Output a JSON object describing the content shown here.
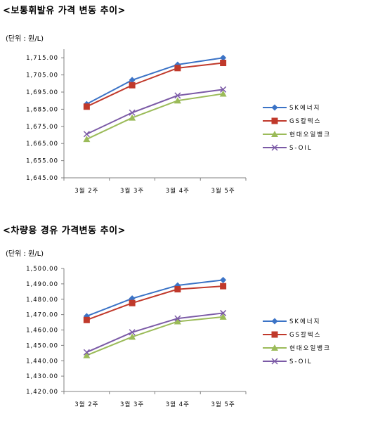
{
  "titles": [
    "<보통휘발유 가격 변동 추이>",
    "<차량용 경유 가격변동 추이>"
  ],
  "chart_data": [
    {
      "type": "line",
      "title": "<보통휘발유 가격 변동 추이>",
      "unit_label": "(단위 : 원/L)",
      "categories": [
        "3월 2주",
        "3월 3주",
        "3월 4주",
        "3월 5주"
      ],
      "ylim": [
        1645,
        1720
      ],
      "y_ticks": [
        "1,715.00",
        "1,705.00",
        "1,695.00",
        "1,685.00",
        "1,675.00",
        "1,665.00",
        "1,655.00",
        "1,645.00"
      ],
      "y_tick_values": [
        1715,
        1705,
        1695,
        1685,
        1675,
        1665,
        1655,
        1645
      ],
      "grid": false,
      "legend_position": "right",
      "series": [
        {
          "name": "SK에너지",
          "values": [
            1688,
            1702,
            1711,
            1715
          ],
          "color": "#3b73c6",
          "marker": "diamond"
        },
        {
          "name": "GS칼텍스",
          "values": [
            1686.5,
            1699,
            1709,
            1712
          ],
          "color": "#c0392b",
          "marker": "square"
        },
        {
          "name": "현대오일뱅크",
          "values": [
            1667.5,
            1680,
            1690,
            1694
          ],
          "color": "#9bbb59",
          "marker": "triangle"
        },
        {
          "name": "S-OIL",
          "values": [
            1670.5,
            1683,
            1693,
            1696.5
          ],
          "color": "#7b5aa6",
          "marker": "x"
        }
      ]
    },
    {
      "type": "line",
      "title": "<차량용 경유 가격변동 추이>",
      "unit_label": "(단위 : 원/L)",
      "categories": [
        "3월 2주",
        "3월 3주",
        "3월 4주",
        "3월 5주"
      ],
      "ylim": [
        1420,
        1500
      ],
      "y_ticks": [
        "1,500.00",
        "1,490.00",
        "1,480.00",
        "1,470.00",
        "1,460.00",
        "1,450.00",
        "1,440.00",
        "1,430.00",
        "1,420.00"
      ],
      "y_tick_values": [
        1500,
        1490,
        1480,
        1470,
        1460,
        1450,
        1440,
        1430,
        1420
      ],
      "grid": false,
      "legend_position": "right",
      "series": [
        {
          "name": "SK에너지",
          "values": [
            1469,
            1480.5,
            1489,
            1492.5
          ],
          "color": "#3b73c6",
          "marker": "diamond"
        },
        {
          "name": "GS칼텍스",
          "values": [
            1466.5,
            1477.5,
            1486.5,
            1488.5
          ],
          "color": "#c0392b",
          "marker": "square"
        },
        {
          "name": "현대오일뱅크",
          "values": [
            1443.5,
            1455.5,
            1465.5,
            1468.5
          ],
          "color": "#9bbb59",
          "marker": "triangle"
        },
        {
          "name": "S-OIL",
          "values": [
            1445.5,
            1458.5,
            1467.5,
            1471
          ],
          "color": "#7b5aa6",
          "marker": "x"
        }
      ]
    }
  ]
}
